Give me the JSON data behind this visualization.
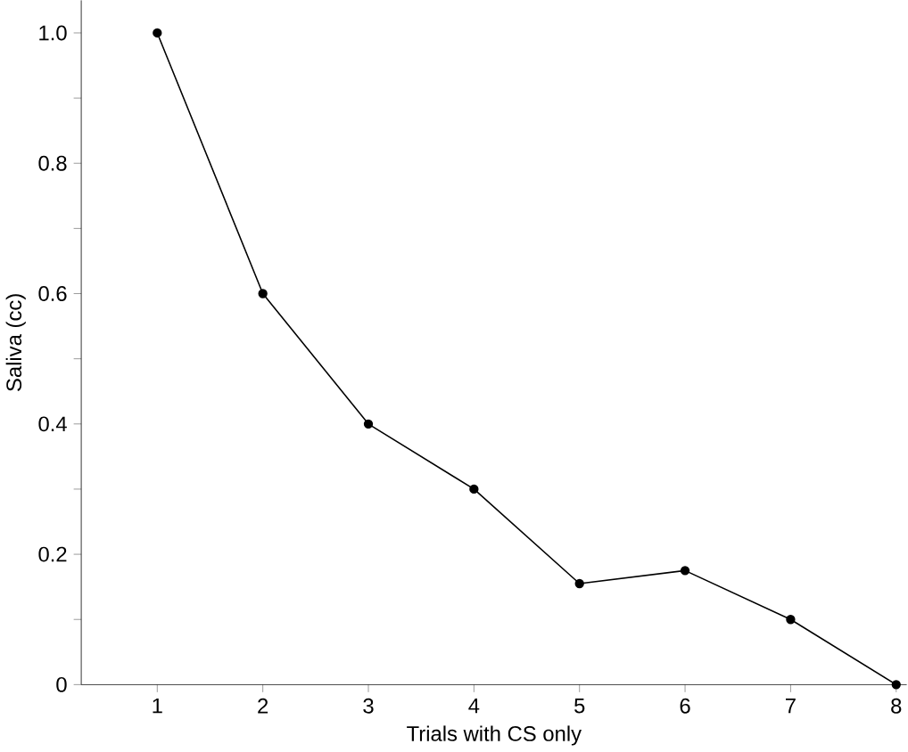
{
  "chart_data": {
    "type": "line",
    "xlabel": "Trials with CS only",
    "ylabel": "Saliva (cc)",
    "x": [
      1,
      2,
      3,
      4,
      5,
      6,
      7,
      8
    ],
    "values": [
      1.0,
      0.6,
      0.4,
      0.3,
      0.155,
      0.175,
      0.1,
      0
    ],
    "color": "#000000",
    "marker": "circle",
    "line_style": "solid",
    "xlim": [
      0.28,
      8.1
    ],
    "ylim": [
      0,
      1.05
    ],
    "xticks": [
      1,
      2,
      3,
      4,
      5,
      6,
      7,
      8
    ],
    "yticks": [
      0,
      {
        "value": 0.1,
        "label": null
      },
      0.2,
      {
        "value": 0.3,
        "label": null
      },
      0.4,
      {
        "value": 0.5,
        "label": null
      },
      0.6,
      {
        "value": 0.7,
        "label": null
      },
      0.8,
      {
        "value": 0.9,
        "label": null
      },
      {
        "value": 1.0,
        "label": "1.0"
      }
    ]
  }
}
